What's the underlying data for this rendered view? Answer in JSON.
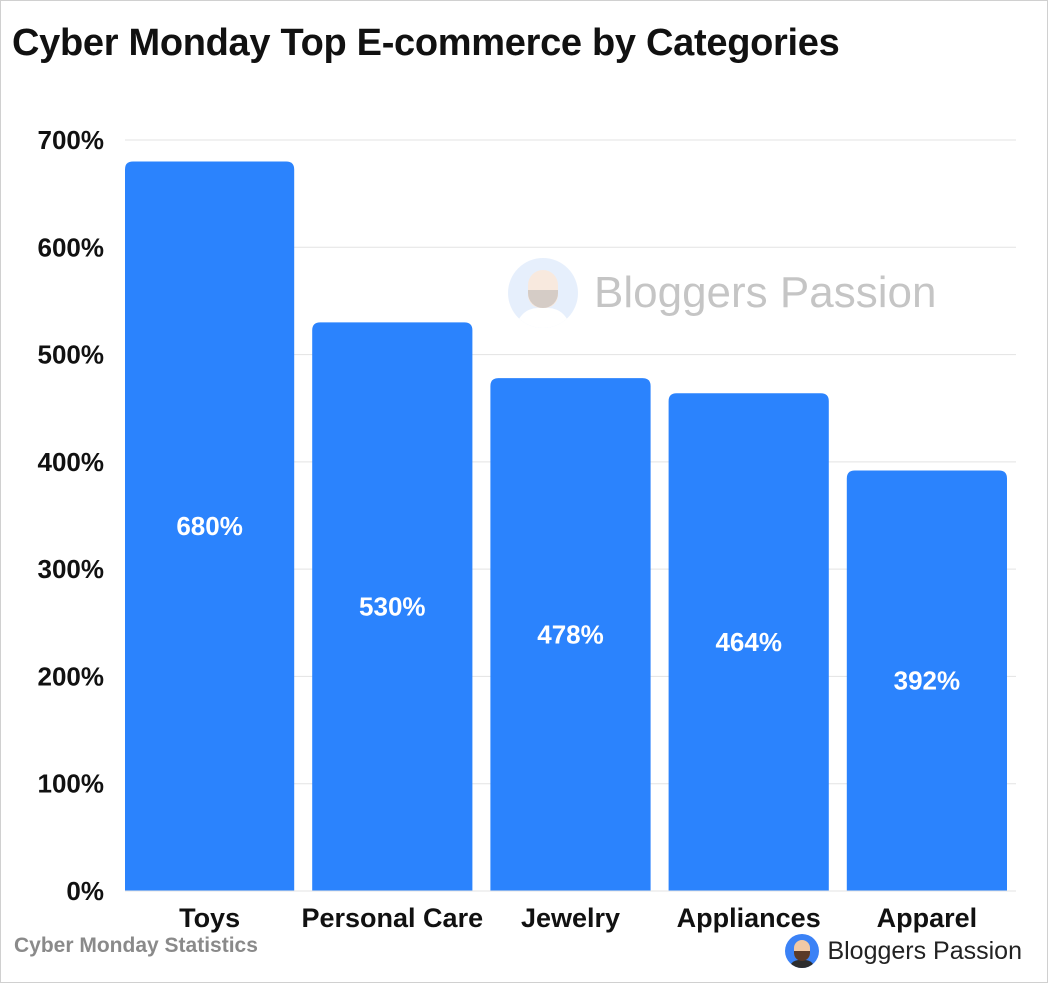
{
  "chart_data": {
    "type": "bar",
    "title": "Cyber Monday Top E-commerce by Categories",
    "categories": [
      "Toys",
      "Personal Care",
      "Jewelry",
      "Appliances",
      "Apparel"
    ],
    "values": [
      680,
      530,
      478,
      464,
      392
    ],
    "data_labels": [
      "680%",
      "530%",
      "478%",
      "464%",
      "392%"
    ],
    "y_ticks": [
      0,
      100,
      200,
      300,
      400,
      500,
      600,
      700
    ],
    "y_tick_labels": [
      "0%",
      "100%",
      "200%",
      "300%",
      "400%",
      "500%",
      "600%",
      "700%"
    ],
    "ylim": [
      0,
      700
    ],
    "grid": true,
    "legend": "none",
    "bar_color": "#2b83fd"
  },
  "footer": {
    "source": "Cyber Monday Statistics",
    "brand": "Bloggers Passion"
  },
  "watermark": {
    "text": "Bloggers Passion"
  },
  "colors": {
    "bar": "#2b83fd",
    "grid": "#e3e3e3",
    "text": "#111111",
    "muted": "#8a8a8a"
  }
}
